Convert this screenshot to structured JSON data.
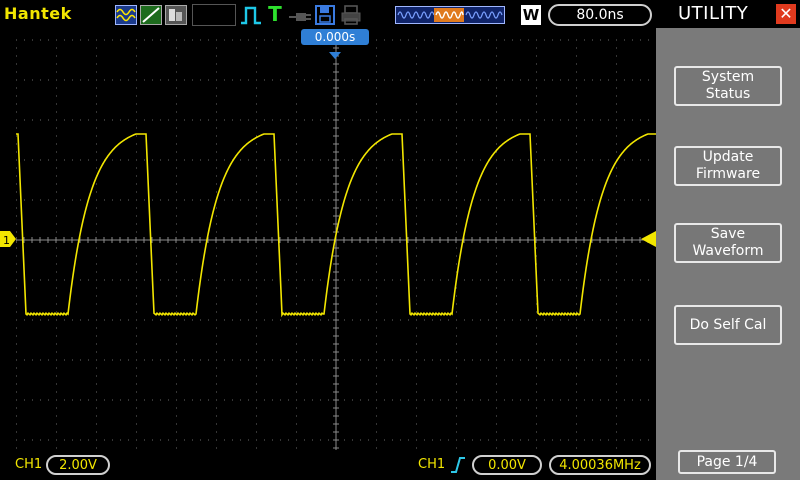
{
  "header": {
    "brand": "Hantek",
    "timebase": "80.0ns",
    "window_mode": "W",
    "trigger_position": "0.000s"
  },
  "status_icons": [
    "wave-icon",
    "slope-icon",
    "fill-icon",
    "pulse-icon",
    "trigger-t-icon",
    "probe-icon",
    "save-icon",
    "print-icon",
    "memory-depth-icon"
  ],
  "footer": {
    "ch1_label": "CH1",
    "ch1_volts": "2.00V",
    "trigger_source": "CH1",
    "trigger_level": "0.00V",
    "frequency": "4.00036MHz"
  },
  "panel": {
    "title": "UTILITY",
    "buttons": [
      {
        "label": "System\nStatus"
      },
      {
        "label": "Update\nFirmware"
      },
      {
        "label": "Save\nWaveform"
      },
      {
        "label": "Do Self Cal"
      }
    ],
    "page": "Page 1/4"
  },
  "colors": {
    "trace": "#f2e600",
    "grid": "#6a6a6a",
    "trigger_marker": "#2f7fd6",
    "close": "#e03a1e"
  },
  "waveform": {
    "periods_on_screen": 5,
    "high_divisions": 2.65,
    "low_divisions": -1.85
  }
}
